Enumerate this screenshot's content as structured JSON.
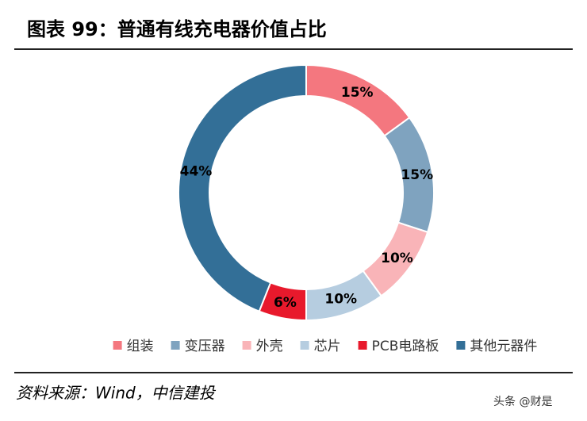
{
  "chart_data": {
    "type": "donut",
    "title": "图表 99：普通有线充电器价值占比",
    "categories": [
      "组装",
      "变压器",
      "外壳",
      "芯片",
      "PCB电路板",
      "其他元器件"
    ],
    "values": [
      15,
      15,
      10,
      10,
      6,
      44
    ],
    "value_labels": [
      "15%",
      "15%",
      "10%",
      "10%",
      "6%",
      "44%"
    ],
    "colors": [
      "#f4777f",
      "#7fa3bf",
      "#f9b4b8",
      "#b6cde0",
      "#e8192c",
      "#336f97"
    ],
    "legend": "bottom",
    "source": "资料来源：Wind，中信建投",
    "watermark": "头条 @财是"
  }
}
